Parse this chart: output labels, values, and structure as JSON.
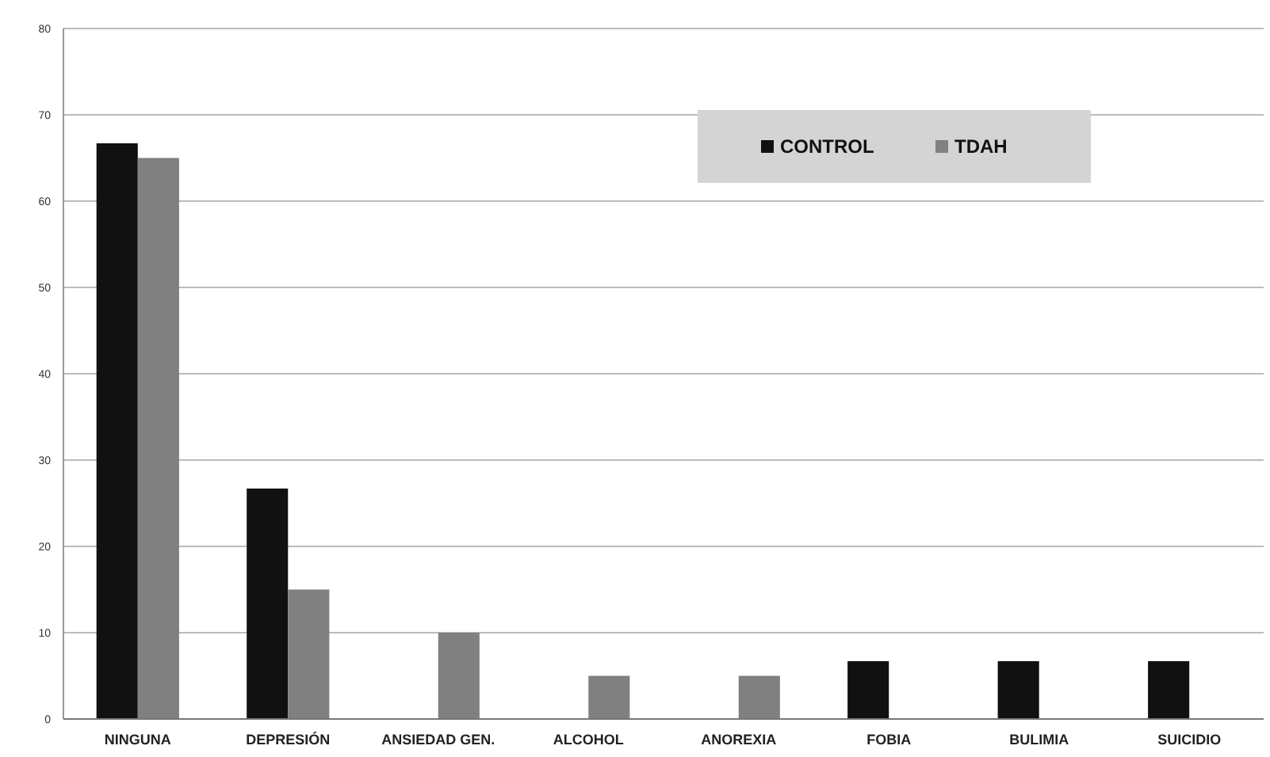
{
  "chart_data": {
    "type": "bar",
    "categories": [
      "NINGUNA",
      "DEPRESIÓN",
      "ANSIEDAD GEN.",
      "ALCOHOL",
      "ANOREXIA",
      "FOBIA",
      "BULIMIA",
      "SUICIDIO"
    ],
    "series": [
      {
        "name": "CONTROL",
        "color": "#111111",
        "values": [
          66.7,
          26.7,
          0,
          0,
          0,
          6.7,
          6.7,
          6.7
        ]
      },
      {
        "name": "TDAH",
        "color": "#808080",
        "values": [
          65,
          15,
          10,
          5,
          5,
          0,
          0,
          0
        ]
      }
    ],
    "ylim": [
      0,
      80
    ],
    "yticks": [
      0,
      10,
      20,
      30,
      40,
      50,
      60,
      70,
      80
    ],
    "grid": "y",
    "legend": "top right"
  }
}
